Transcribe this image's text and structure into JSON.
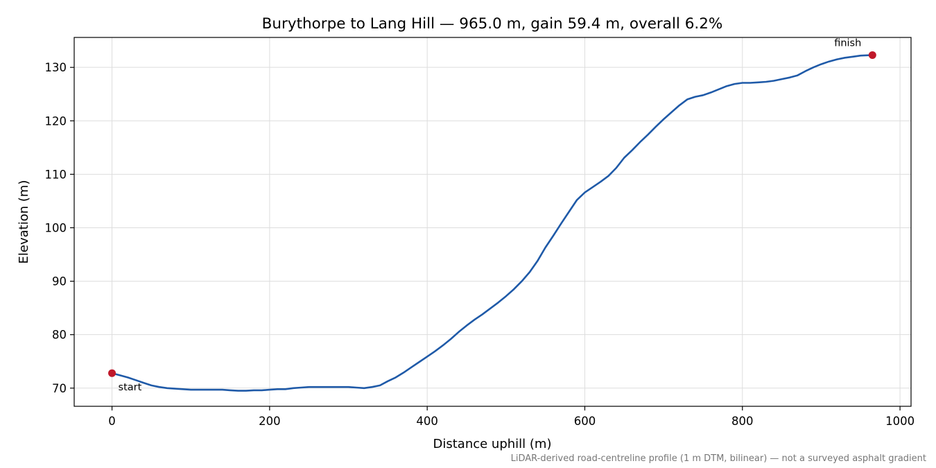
{
  "chart_data": {
    "type": "line",
    "title": "Burythorpe to Lang Hill — 965.0 m, gain 59.4 m, overall 6.2%",
    "xlabel": "Distance uphill (m)",
    "ylabel": "Elevation (m)",
    "xlim": [
      -48,
      1014
    ],
    "ylim": [
      66.6,
      135.6
    ],
    "xticks": [
      0,
      200,
      400,
      600,
      800,
      1000
    ],
    "yticks": [
      70,
      80,
      90,
      100,
      110,
      120,
      130
    ],
    "grid": true,
    "series": [
      {
        "color": "#1f5aa8",
        "x": [
          0,
          10,
          20,
          30,
          40,
          50,
          60,
          70,
          80,
          90,
          100,
          110,
          120,
          130,
          140,
          150,
          160,
          170,
          180,
          190,
          200,
          210,
          220,
          230,
          240,
          250,
          260,
          270,
          280,
          290,
          300,
          310,
          320,
          330,
          340,
          350,
          360,
          370,
          380,
          390,
          400,
          410,
          420,
          430,
          440,
          450,
          460,
          470,
          480,
          490,
          500,
          510,
          520,
          530,
          540,
          550,
          560,
          570,
          580,
          590,
          600,
          610,
          620,
          630,
          640,
          650,
          660,
          670,
          680,
          690,
          700,
          710,
          720,
          730,
          740,
          750,
          760,
          770,
          780,
          790,
          800,
          810,
          820,
          830,
          840,
          850,
          860,
          870,
          880,
          890,
          900,
          910,
          920,
          930,
          940,
          950,
          965
        ],
        "y": [
          72.8,
          72.4,
          72.0,
          71.5,
          71.0,
          70.5,
          70.2,
          70.0,
          69.9,
          69.8,
          69.7,
          69.7,
          69.7,
          69.7,
          69.7,
          69.6,
          69.5,
          69.5,
          69.6,
          69.6,
          69.7,
          69.8,
          69.8,
          70.0,
          70.1,
          70.2,
          70.2,
          70.2,
          70.2,
          70.2,
          70.2,
          70.1,
          70.0,
          70.2,
          70.5,
          71.3,
          72.0,
          72.9,
          73.9,
          74.9,
          75.9,
          76.9,
          78.0,
          79.2,
          80.5,
          81.7,
          82.8,
          83.8,
          84.9,
          86.0,
          87.2,
          88.5,
          90.0,
          91.7,
          93.8,
          96.3,
          98.5,
          100.8,
          103.0,
          105.2,
          106.6,
          107.6,
          108.6,
          109.7,
          111.2,
          113.1,
          114.5,
          116.0,
          117.4,
          118.9,
          120.3,
          121.6,
          122.9,
          124.0,
          124.5,
          124.8,
          125.3,
          125.9,
          126.5,
          126.9,
          127.1,
          127.1,
          127.2,
          127.3,
          127.5,
          127.8,
          128.1,
          128.5,
          129.3,
          130.0,
          130.6,
          131.1,
          131.5,
          131.8,
          132.0,
          132.2,
          132.3
        ]
      }
    ],
    "markers": [
      {
        "x": 0,
        "y": 72.8,
        "label": "start",
        "color": "#c0182a"
      },
      {
        "x": 965,
        "y": 132.3,
        "label": "finish",
        "color": "#c0182a"
      }
    ],
    "footnote": "LiDAR-derived road-centreline profile (1 m DTM, bilinear) — not a surveyed asphalt gradient"
  }
}
